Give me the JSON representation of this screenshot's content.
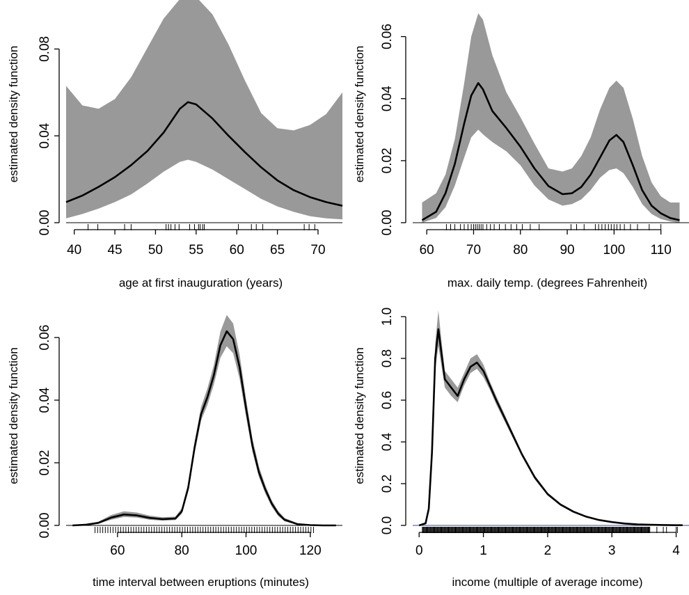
{
  "chart_data": [
    {
      "type": "area",
      "xlabel": "age at first inauguration (years)",
      "ylabel": "estimated density function",
      "xlim": [
        39,
        73
      ],
      "ylim": [
        0,
        0.1
      ],
      "xticks": [
        40,
        45,
        50,
        55,
        60,
        65,
        70
      ],
      "yticks": [
        0.0,
        0.04,
        0.08
      ],
      "ytick_labels": [
        "0.00",
        "0.04",
        "0.08"
      ],
      "grid": false,
      "series": [
        {
          "role": "estimate",
          "x": [
            39,
            41,
            43,
            45,
            47,
            49,
            51,
            53,
            54,
            55,
            57,
            59,
            61,
            63,
            65,
            67,
            69,
            71,
            73
          ],
          "y": [
            0.0095,
            0.0125,
            0.0165,
            0.021,
            0.0265,
            0.033,
            0.0415,
            0.0525,
            0.0555,
            0.0545,
            0.048,
            0.04,
            0.0325,
            0.0255,
            0.0195,
            0.015,
            0.0118,
            0.0095,
            0.0078
          ]
        },
        {
          "role": "lower-band",
          "x": [
            39,
            41,
            43,
            45,
            47,
            49,
            51,
            53,
            54,
            55,
            57,
            59,
            61,
            63,
            65,
            67,
            69,
            71,
            73
          ],
          "y": [
            0.002,
            0.004,
            0.0065,
            0.0095,
            0.013,
            0.018,
            0.0235,
            0.028,
            0.029,
            0.028,
            0.0245,
            0.02,
            0.0155,
            0.011,
            0.0075,
            0.005,
            0.003,
            0.002,
            0.0015
          ]
        },
        {
          "role": "upper-band",
          "x": [
            39,
            41,
            43,
            45,
            47,
            49,
            51,
            53,
            54,
            55,
            57,
            59,
            61,
            63,
            65,
            67,
            69,
            71,
            73
          ],
          "y": [
            0.063,
            0.054,
            0.0525,
            0.057,
            0.067,
            0.0805,
            0.094,
            0.103,
            0.105,
            0.104,
            0.096,
            0.082,
            0.0655,
            0.0505,
            0.0435,
            0.0425,
            0.045,
            0.05,
            0.06
          ]
        }
      ],
      "rug": [
        41.7,
        42.9,
        46.2,
        47.0,
        51.3,
        51.6,
        51.9,
        52.4,
        52.9,
        54.2,
        54.8,
        55.3,
        55.5,
        55.8,
        56.0,
        60.2,
        61.8,
        62.4,
        63.2,
        68.3,
        68.9,
        69.6
      ]
    },
    {
      "type": "area",
      "xlabel": "max. daily temp. (degrees Fahrenheit)",
      "ylabel": "estimated density function",
      "xlim": [
        57,
        116
      ],
      "ylim": [
        0,
        0.07
      ],
      "xticks": [
        60,
        70,
        80,
        90,
        100,
        110
      ],
      "yticks": [
        0.0,
        0.02,
        0.04,
        0.06
      ],
      "ytick_labels": [
        "0.00",
        "0.02",
        "0.04",
        "0.06"
      ],
      "grid": false,
      "series": [
        {
          "role": "estimate",
          "x": [
            59,
            62,
            64,
            66,
            68,
            69.5,
            71,
            72,
            74,
            77,
            80,
            83,
            86,
            89,
            91,
            93,
            95,
            97,
            99,
            100.5,
            102,
            104,
            106,
            108,
            110,
            112,
            114
          ],
          "y": [
            0.0008,
            0.0035,
            0.0095,
            0.019,
            0.032,
            0.041,
            0.045,
            0.043,
            0.036,
            0.0305,
            0.0245,
            0.0175,
            0.0118,
            0.0092,
            0.0095,
            0.0115,
            0.0155,
            0.021,
            0.0265,
            0.0283,
            0.026,
            0.0185,
            0.0105,
            0.0055,
            0.003,
            0.0015,
            0.0008
          ]
        },
        {
          "role": "lower-band",
          "x": [
            59,
            62,
            64,
            66,
            68,
            69.5,
            71,
            72,
            74,
            77,
            80,
            83,
            86,
            89,
            91,
            93,
            95,
            97,
            99,
            100.5,
            102,
            104,
            106,
            108,
            110,
            112,
            114
          ],
          "y": [
            0.0,
            0.0015,
            0.005,
            0.012,
            0.021,
            0.0275,
            0.03,
            0.0285,
            0.026,
            0.023,
            0.0185,
            0.012,
            0.0075,
            0.0055,
            0.006,
            0.0075,
            0.0105,
            0.0145,
            0.017,
            0.0175,
            0.016,
            0.0115,
            0.006,
            0.0028,
            0.0012,
            0.0004,
            0.0
          ]
        },
        {
          "role": "upper-band",
          "x": [
            59,
            62,
            64,
            66,
            68,
            69.5,
            71,
            72,
            74,
            77,
            80,
            83,
            86,
            89,
            91,
            93,
            95,
            97,
            99,
            100.5,
            102,
            104,
            106,
            108,
            110,
            112,
            114
          ],
          "y": [
            0.0065,
            0.0095,
            0.0155,
            0.027,
            0.045,
            0.06,
            0.0675,
            0.0655,
            0.054,
            0.042,
            0.034,
            0.0255,
            0.0175,
            0.0165,
            0.0175,
            0.0215,
            0.0275,
            0.0365,
            0.0435,
            0.0458,
            0.0435,
            0.0335,
            0.0215,
            0.013,
            0.0085,
            0.0065,
            0.0065
          ]
        }
      ],
      "rug": [
        64.2,
        65.1,
        66.0,
        67.2,
        68.0,
        68.8,
        69.5,
        70.0,
        70.4,
        70.8,
        71.2,
        71.6,
        72.0,
        72.8,
        73.6,
        74.4,
        75.5,
        76.8,
        78.0,
        79.2,
        80.4,
        82.1,
        84.0,
        90.8,
        92.0,
        93.6,
        96.0,
        96.7,
        97.4,
        98.1,
        98.8,
        99.4,
        100.0,
        100.6,
        101.3,
        102.2,
        103.5,
        105.0,
        107.5,
        110.0
      ]
    },
    {
      "type": "area",
      "xlabel": "time interval between eruptions (minutes)",
      "ylabel": "estimated density function",
      "xlim": [
        44,
        130
      ],
      "ylim": [
        0,
        0.07
      ],
      "xticks": [
        60,
        80,
        100,
        120
      ],
      "yticks": [
        0.0,
        0.02,
        0.04,
        0.06
      ],
      "ytick_labels": [
        "0.00",
        "0.02",
        "0.04",
        "0.06"
      ],
      "grid": false,
      "series": [
        {
          "role": "estimate",
          "x": [
            46,
            50,
            54,
            58,
            62,
            66,
            70,
            74,
            78,
            80,
            82,
            84,
            86,
            88,
            90,
            92,
            94,
            96,
            98,
            100,
            102,
            104,
            106,
            108,
            110,
            112,
            116,
            120,
            124,
            128
          ],
          "y": [
            0.0,
            0.0002,
            0.0008,
            0.0025,
            0.0035,
            0.0032,
            0.0024,
            0.002,
            0.0022,
            0.0045,
            0.012,
            0.025,
            0.0355,
            0.041,
            0.048,
            0.0575,
            0.062,
            0.0595,
            0.0505,
            0.0375,
            0.0255,
            0.017,
            0.0115,
            0.007,
            0.0038,
            0.0018,
            0.0004,
            0.0001,
            0.0,
            0.0
          ]
        },
        {
          "role": "lower-band",
          "x": [
            46,
            50,
            54,
            58,
            62,
            66,
            70,
            74,
            78,
            80,
            82,
            84,
            86,
            88,
            90,
            92,
            94,
            96,
            98,
            100,
            102,
            104,
            106,
            108,
            110,
            112,
            116,
            120,
            124,
            128
          ],
          "y": [
            0.0,
            0.0001,
            0.0005,
            0.0018,
            0.0027,
            0.0025,
            0.0018,
            0.0015,
            0.0017,
            0.0037,
            0.0108,
            0.0232,
            0.0335,
            0.0385,
            0.045,
            0.0535,
            0.0572,
            0.055,
            0.0468,
            0.0348,
            0.0235,
            0.0155,
            0.0102,
            0.006,
            0.003,
            0.0013,
            0.0002,
            0.0,
            0.0,
            0.0
          ]
        },
        {
          "role": "upper-band",
          "x": [
            46,
            50,
            54,
            58,
            62,
            66,
            70,
            74,
            78,
            80,
            82,
            84,
            86,
            88,
            90,
            92,
            94,
            96,
            98,
            100,
            102,
            104,
            106,
            108,
            110,
            112,
            116,
            120,
            124,
            128
          ],
          "y": [
            0.0001,
            0.0004,
            0.0012,
            0.0033,
            0.0045,
            0.0041,
            0.0031,
            0.0026,
            0.0028,
            0.0055,
            0.0133,
            0.0268,
            0.0378,
            0.0438,
            0.0512,
            0.0618,
            0.0672,
            0.0645,
            0.0545,
            0.0405,
            0.0278,
            0.0188,
            0.0128,
            0.008,
            0.0046,
            0.0024,
            0.0007,
            0.0002,
            0.0001,
            0.0
          ]
        }
      ],
      "rug_range": [
        53,
        121
      ],
      "rug_step": 0.8
    },
    {
      "type": "area",
      "xlabel": "income (multiple of average income)",
      "ylabel": "estimated density function",
      "xlim": [
        -0.1,
        4.2
      ],
      "ylim": [
        0,
        1.05
      ],
      "xticks": [
        0,
        1,
        2,
        3,
        4
      ],
      "yticks": [
        0.0,
        0.2,
        0.4,
        0.6,
        0.8,
        1.0
      ],
      "ytick_labels": [
        "0.0",
        "0.2",
        "0.4",
        "0.6",
        "0.8",
        "1.0"
      ],
      "grid": false,
      "series": [
        {
          "role": "estimate",
          "x": [
            0.0,
            0.1,
            0.15,
            0.2,
            0.25,
            0.3,
            0.35,
            0.4,
            0.5,
            0.6,
            0.7,
            0.8,
            0.9,
            1.0,
            1.1,
            1.2,
            1.4,
            1.6,
            1.8,
            2.0,
            2.2,
            2.4,
            2.6,
            2.8,
            3.0,
            3.2,
            3.4,
            3.6,
            3.8,
            4.0,
            4.1
          ],
          "y": [
            0.0,
            0.01,
            0.08,
            0.35,
            0.8,
            0.94,
            0.82,
            0.7,
            0.66,
            0.62,
            0.7,
            0.76,
            0.78,
            0.74,
            0.67,
            0.6,
            0.47,
            0.34,
            0.23,
            0.15,
            0.1,
            0.066,
            0.042,
            0.026,
            0.016,
            0.009,
            0.005,
            0.003,
            0.002,
            0.001,
            0.001
          ]
        },
        {
          "role": "lower-band",
          "x": [
            0.0,
            0.1,
            0.15,
            0.2,
            0.25,
            0.3,
            0.35,
            0.4,
            0.5,
            0.6,
            0.7,
            0.8,
            0.9,
            1.0,
            1.1,
            1.2,
            1.4,
            1.6,
            1.8,
            2.0,
            2.2,
            2.4,
            2.6,
            2.8,
            3.0,
            3.2,
            3.4,
            3.6,
            3.8,
            4.0,
            4.1
          ],
          "y": [
            0.0,
            0.005,
            0.06,
            0.31,
            0.74,
            0.86,
            0.76,
            0.66,
            0.62,
            0.59,
            0.67,
            0.73,
            0.75,
            0.71,
            0.65,
            0.58,
            0.455,
            0.33,
            0.22,
            0.143,
            0.094,
            0.061,
            0.038,
            0.023,
            0.013,
            0.007,
            0.003,
            0.002,
            0.001,
            0.0,
            0.0
          ]
        },
        {
          "role": "upper-band",
          "x": [
            0.0,
            0.1,
            0.15,
            0.2,
            0.25,
            0.3,
            0.35,
            0.4,
            0.5,
            0.6,
            0.7,
            0.8,
            0.9,
            1.0,
            1.1,
            1.2,
            1.4,
            1.6,
            1.8,
            2.0,
            2.2,
            2.4,
            2.6,
            2.8,
            3.0,
            3.2,
            3.4,
            3.6,
            3.8,
            4.0,
            4.1
          ],
          "y": [
            0.0,
            0.015,
            0.1,
            0.39,
            0.87,
            1.03,
            0.88,
            0.74,
            0.7,
            0.66,
            0.73,
            0.8,
            0.82,
            0.77,
            0.69,
            0.62,
            0.485,
            0.35,
            0.24,
            0.157,
            0.106,
            0.071,
            0.046,
            0.029,
            0.019,
            0.011,
            0.007,
            0.004,
            0.003,
            0.002,
            0.002
          ]
        }
      ],
      "rug_range": [
        0.05,
        3.6
      ],
      "rug_step": 0.012,
      "rug_sparse": [
        3.7,
        3.8,
        3.85,
        4.0,
        4.02
      ],
      "baseline_color": "#3b3bbf"
    }
  ]
}
